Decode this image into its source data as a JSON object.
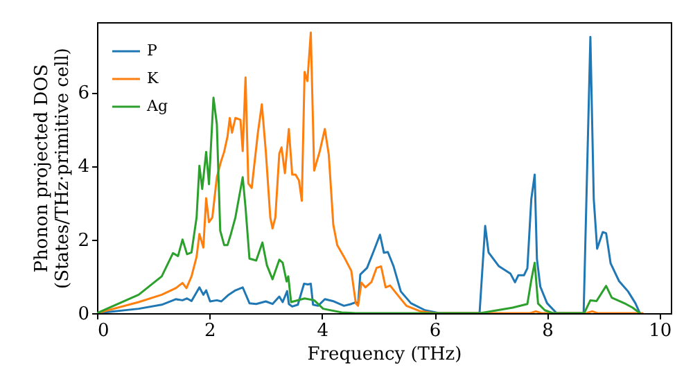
{
  "chart_data": {
    "type": "line",
    "xlabel": "Frequency (THz)",
    "ylabel": "Phonon projected DOS\n(States/THz·primitive cell)",
    "xlim": [
      0,
      10.2
    ],
    "xticks": [
      0,
      2,
      4,
      6,
      8,
      10
    ],
    "ylim": [
      0,
      7.9
    ],
    "yticks": [
      0,
      2,
      4,
      6
    ],
    "grid": false,
    "legend": "top left",
    "line_style": "solid",
    "marker": "none",
    "series": [
      {
        "name": "P",
        "color": "#1f77b4",
        "x": [
          0,
          0.74,
          1.15,
          1.4,
          1.52,
          1.6,
          1.68,
          1.82,
          1.89,
          1.94,
          2.01,
          2.13,
          2.21,
          2.34,
          2.46,
          2.59,
          2.71,
          2.83,
          3.0,
          3.12,
          3.24,
          3.3,
          3.38,
          3.41,
          3.47,
          3.57,
          3.68,
          3.75,
          3.8,
          3.84,
          3.93,
          4.05,
          4.19,
          4.39,
          4.52,
          4.6,
          4.64,
          4.68,
          4.8,
          4.93,
          5.03,
          5.1,
          5.17,
          5.27,
          5.4,
          5.58,
          5.83,
          6.08,
          6.8,
          6.9,
          6.96,
          7.14,
          7.35,
          7.43,
          7.49,
          7.59,
          7.65,
          7.72,
          7.78,
          7.82,
          7.88,
          8.0,
          8.17,
          8.65,
          8.77,
          8.83,
          8.89,
          8.99,
          9.05,
          9.13,
          9.28,
          9.44,
          9.57,
          9.65
        ],
        "values": [
          0,
          0.12,
          0.23,
          0.38,
          0.35,
          0.4,
          0.33,
          0.7,
          0.5,
          0.62,
          0.32,
          0.35,
          0.32,
          0.5,
          0.62,
          0.7,
          0.27,
          0.25,
          0.32,
          0.25,
          0.45,
          0.3,
          0.6,
          0.25,
          0.18,
          0.23,
          0.8,
          0.78,
          0.8,
          0.23,
          0.2,
          0.38,
          0.33,
          0.2,
          0.25,
          0.3,
          0.23,
          1.05,
          1.23,
          1.73,
          2.13,
          1.64,
          1.66,
          1.28,
          0.59,
          0.27,
          0.08,
          0,
          0,
          2.37,
          1.65,
          1.28,
          1.07,
          0.84,
          1.03,
          1.03,
          1.22,
          3.1,
          3.76,
          1.47,
          0.72,
          0.27,
          0,
          0,
          7.5,
          3.1,
          1.75,
          2.2,
          2.17,
          1.35,
          0.87,
          0.59,
          0.27,
          0
        ]
      },
      {
        "name": "K",
        "color": "#ff7f0e",
        "x": [
          0,
          0.74,
          1.15,
          1.4,
          1.52,
          1.59,
          1.68,
          1.77,
          1.82,
          1.89,
          1.94,
          1.99,
          2.05,
          2.13,
          2.2,
          2.26,
          2.32,
          2.36,
          2.4,
          2.46,
          2.55,
          2.59,
          2.64,
          2.69,
          2.75,
          2.86,
          2.93,
          3.0,
          3.08,
          3.12,
          3.17,
          3.24,
          3.28,
          3.34,
          3.41,
          3.47,
          3.53,
          3.59,
          3.64,
          3.69,
          3.74,
          3.8,
          3.86,
          3.96,
          4.05,
          4.12,
          4.2,
          4.27,
          4.39,
          4.52,
          4.6,
          4.64,
          4.7,
          4.77,
          4.88,
          4.97,
          5.05,
          5.13,
          5.21,
          5.34,
          5.5,
          5.75,
          6.0,
          7.7,
          7.8,
          7.9,
          8.7,
          8.8,
          8.9,
          9.7
        ],
        "values": [
          0,
          0.3,
          0.5,
          0.68,
          0.82,
          0.68,
          1.0,
          1.53,
          2.15,
          1.78,
          3.12,
          2.47,
          2.6,
          3.69,
          4.1,
          4.38,
          4.8,
          5.3,
          4.9,
          5.3,
          5.25,
          4.4,
          6.4,
          3.52,
          3.4,
          4.9,
          5.67,
          4.4,
          2.6,
          2.3,
          2.6,
          4.33,
          4.5,
          3.8,
          5.0,
          3.76,
          3.76,
          3.6,
          3.05,
          6.55,
          6.3,
          7.62,
          3.87,
          4.4,
          5.0,
          4.3,
          2.4,
          1.85,
          1.53,
          1.15,
          0.27,
          0.2,
          0.83,
          0.7,
          0.85,
          1.23,
          1.27,
          0.7,
          0.75,
          0.5,
          0.2,
          0.05,
          0,
          0,
          0.05,
          0,
          0,
          0.05,
          0,
          0
        ]
      },
      {
        "name": "Ag",
        "color": "#2ca02c",
        "x": [
          0,
          0.74,
          1.15,
          1.35,
          1.44,
          1.52,
          1.6,
          1.68,
          1.77,
          1.82,
          1.87,
          1.94,
          1.99,
          2.07,
          2.13,
          2.19,
          2.26,
          2.32,
          2.38,
          2.46,
          2.59,
          2.64,
          2.71,
          2.83,
          2.94,
          3.02,
          3.12,
          3.24,
          3.3,
          3.37,
          3.4,
          3.45,
          3.69,
          3.86,
          4.02,
          4.35,
          4.6,
          6.81,
          7.39,
          7.65,
          7.72,
          7.78,
          7.84,
          7.96,
          8.1,
          8.66,
          8.77,
          8.88,
          9.05,
          9.15,
          9.4,
          9.52,
          9.65
        ],
        "values": [
          0,
          0.5,
          1.0,
          1.63,
          1.55,
          2.0,
          1.6,
          1.65,
          2.6,
          4.0,
          3.37,
          4.38,
          3.5,
          5.85,
          5.13,
          2.24,
          1.85,
          1.85,
          2.15,
          2.6,
          3.69,
          2.87,
          1.48,
          1.43,
          1.92,
          1.3,
          0.92,
          1.45,
          1.37,
          0.86,
          1.0,
          0.3,
          0.4,
          0.35,
          0.12,
          0.02,
          0,
          0,
          0.15,
          0.25,
          0.9,
          1.37,
          0.26,
          0.08,
          0,
          0,
          0.35,
          0.33,
          0.74,
          0.42,
          0.25,
          0.15,
          0
        ]
      }
    ]
  }
}
